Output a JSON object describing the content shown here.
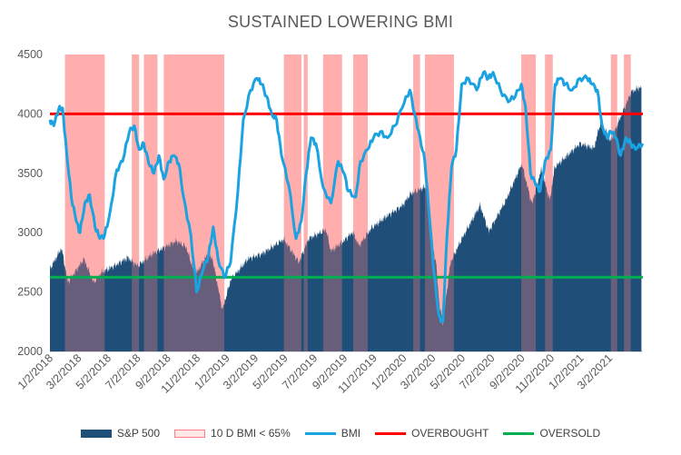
{
  "chart_data": {
    "type": "area",
    "title": "SUSTAINED LOWERING BMI",
    "xlabel": "",
    "ylabel": "",
    "ylim": [
      2000,
      4500
    ],
    "yticks": [
      2000,
      2500,
      3000,
      3500,
      4000,
      4500
    ],
    "xlim": [
      "2018-01-02",
      "2021-05-10"
    ],
    "xtick_labels": [
      "1/2/2018",
      "3/2/2018",
      "5/2/2018",
      "7/2/2018",
      "9/2/2018",
      "11/2/2018",
      "1/2/2019",
      "3/2/2019",
      "5/2/2019",
      "7/2/2019",
      "9/2/2019",
      "11/2/2019",
      "1/2/2020",
      "3/2/2020",
      "5/2/2020",
      "7/2/2020",
      "9/2/2020",
      "11/2/2020",
      "1/2/2021",
      "3/2/2021"
    ],
    "xtick_dates": [
      "2018-01-02",
      "2018-03-02",
      "2018-05-02",
      "2018-07-02",
      "2018-09-02",
      "2018-11-02",
      "2019-01-02",
      "2019-03-02",
      "2019-05-02",
      "2019-07-02",
      "2019-09-02",
      "2019-11-02",
      "2020-01-02",
      "2020-03-02",
      "2020-05-02",
      "2020-07-02",
      "2020-09-02",
      "2020-11-02",
      "2021-01-02",
      "2021-03-02"
    ],
    "legend_position": "bottom",
    "series": [
      {
        "name": "S&P 500",
        "kind": "area",
        "color": "#1f4e79",
        "x": [
          "2018-01-02",
          "2018-01-26",
          "2018-02-08",
          "2018-03-01",
          "2018-03-13",
          "2018-04-02",
          "2018-04-20",
          "2018-05-15",
          "2018-06-12",
          "2018-07-02",
          "2018-08-01",
          "2018-09-20",
          "2018-10-10",
          "2018-10-29",
          "2018-11-20",
          "2018-12-03",
          "2018-12-24",
          "2019-01-10",
          "2019-02-15",
          "2019-03-15",
          "2019-04-30",
          "2019-05-31",
          "2019-06-20",
          "2019-07-26",
          "2019-08-05",
          "2019-08-30",
          "2019-09-19",
          "2019-10-02",
          "2019-10-28",
          "2019-11-29",
          "2019-12-31",
          "2020-01-17",
          "2020-02-19",
          "2020-02-28",
          "2020-03-09",
          "2020-03-16",
          "2020-03-23",
          "2020-04-08",
          "2020-04-29",
          "2020-06-08",
          "2020-06-26",
          "2020-07-31",
          "2020-09-02",
          "2020-09-23",
          "2020-10-12",
          "2020-10-30",
          "2020-11-09",
          "2020-12-31",
          "2021-01-29",
          "2021-02-12",
          "2021-03-04",
          "2021-04-16",
          "2021-05-07"
        ],
        "y": [
          2695,
          2870,
          2580,
          2705,
          2780,
          2580,
          2670,
          2720,
          2790,
          2720,
          2820,
          2930,
          2880,
          2640,
          2800,
          2790,
          2350,
          2600,
          2780,
          2820,
          2945,
          2750,
          2950,
          3025,
          2845,
          2925,
          3005,
          2890,
          3040,
          3140,
          3230,
          3330,
          3390,
          2950,
          2745,
          2390,
          2240,
          2750,
          2930,
          3230,
          3010,
          3270,
          3580,
          3240,
          3530,
          3270,
          3550,
          3750,
          3710,
          3935,
          3770,
          4185,
          4230
        ]
      },
      {
        "name": "BMI",
        "kind": "line",
        "color": "#1aa3e0",
        "x": [
          "2018-01-02",
          "2018-01-10",
          "2018-01-20",
          "2018-01-28",
          "2018-02-05",
          "2018-02-15",
          "2018-02-25",
          "2018-03-05",
          "2018-03-15",
          "2018-03-25",
          "2018-04-05",
          "2018-04-15",
          "2018-04-25",
          "2018-05-05",
          "2018-05-20",
          "2018-06-01",
          "2018-06-15",
          "2018-06-25",
          "2018-07-05",
          "2018-07-15",
          "2018-07-25",
          "2018-08-05",
          "2018-08-15",
          "2018-08-25",
          "2018-09-05",
          "2018-09-15",
          "2018-09-25",
          "2018-10-05",
          "2018-10-20",
          "2018-11-01",
          "2018-11-15",
          "2018-11-25",
          "2018-12-05",
          "2018-12-15",
          "2018-12-28",
          "2019-01-10",
          "2019-01-25",
          "2019-02-05",
          "2019-02-20",
          "2019-03-05",
          "2019-03-15",
          "2019-03-25",
          "2019-04-05",
          "2019-04-15",
          "2019-04-25",
          "2019-05-10",
          "2019-05-25",
          "2019-06-05",
          "2019-06-15",
          "2019-06-25",
          "2019-07-05",
          "2019-07-20",
          "2019-08-05",
          "2019-08-20",
          "2019-09-01",
          "2019-09-10",
          "2019-09-25",
          "2019-10-05",
          "2019-10-20",
          "2019-11-01",
          "2019-11-15",
          "2019-11-30",
          "2019-12-15",
          "2019-12-30",
          "2020-01-15",
          "2020-01-25",
          "2020-02-05",
          "2020-02-15",
          "2020-02-25",
          "2020-03-05",
          "2020-03-15",
          "2020-03-23",
          "2020-04-01",
          "2020-04-10",
          "2020-04-20",
          "2020-05-01",
          "2020-05-15",
          "2020-06-01",
          "2020-06-15",
          "2020-06-25",
          "2020-07-05",
          "2020-07-20",
          "2020-08-05",
          "2020-08-20",
          "2020-09-01",
          "2020-09-10",
          "2020-09-20",
          "2020-10-01",
          "2020-10-10",
          "2020-10-20",
          "2020-11-01",
          "2020-11-10",
          "2020-11-20",
          "2020-12-01",
          "2020-12-15",
          "2020-12-31",
          "2021-01-15",
          "2021-01-25",
          "2021-02-05",
          "2021-02-15",
          "2021-02-25",
          "2021-03-05",
          "2021-03-15",
          "2021-03-25",
          "2021-04-05",
          "2021-04-15",
          "2021-04-25",
          "2021-05-10"
        ],
        "y": [
          3950,
          3900,
          4040,
          4050,
          3700,
          3300,
          3100,
          3000,
          3250,
          3320,
          3050,
          2950,
          2980,
          3150,
          3530,
          3600,
          3850,
          3900,
          3700,
          3750,
          3580,
          3500,
          3650,
          3450,
          3600,
          3650,
          3580,
          3300,
          2980,
          2500,
          2700,
          2800,
          3050,
          2780,
          2620,
          2750,
          3350,
          3950,
          4200,
          4300,
          4250,
          4150,
          4000,
          3950,
          3650,
          3400,
          2950,
          3100,
          3500,
          3800,
          3750,
          3380,
          3250,
          3600,
          3500,
          3350,
          3300,
          3600,
          3700,
          3800,
          3850,
          3800,
          3900,
          4050,
          4200,
          4000,
          3800,
          3600,
          3100,
          2650,
          2300,
          2250,
          3000,
          3550,
          3700,
          4250,
          4300,
          4200,
          4350,
          4300,
          4350,
          4200,
          4100,
          4150,
          4250,
          4050,
          3500,
          3400,
          3350,
          3600,
          3700,
          4250,
          4300,
          4250,
          4200,
          4300,
          4300,
          4250,
          4200,
          3900,
          3800,
          3850,
          3800,
          3650,
          3800,
          3750,
          3700,
          3750
        ]
      },
      {
        "name": "10 D BMI < 65%",
        "kind": "shaded-ranges",
        "color": "#ffc0c0",
        "ranges": [
          [
            "2018-02-02",
            "2018-04-25"
          ],
          [
            "2018-06-20",
            "2018-07-05"
          ],
          [
            "2018-07-15",
            "2018-08-12"
          ],
          [
            "2018-08-25",
            "2018-12-28"
          ],
          [
            "2019-04-30",
            "2019-06-05"
          ],
          [
            "2019-06-10",
            "2019-06-18"
          ],
          [
            "2019-07-20",
            "2019-08-28"
          ],
          [
            "2019-09-20",
            "2019-10-20"
          ],
          [
            "2020-01-22",
            "2020-02-05"
          ],
          [
            "2020-02-15",
            "2020-04-15"
          ],
          [
            "2020-09-01",
            "2020-10-01"
          ],
          [
            "2020-10-20",
            "2020-11-05"
          ],
          [
            "2021-03-05",
            "2021-03-18"
          ],
          [
            "2021-04-01",
            "2021-04-15"
          ]
        ]
      },
      {
        "name": "OVERBOUGHT",
        "kind": "hline",
        "color": "#ff0000",
        "y": 4000
      },
      {
        "name": "OVERSOLD",
        "kind": "hline",
        "color": "#00b050",
        "y": 2625
      }
    ]
  }
}
